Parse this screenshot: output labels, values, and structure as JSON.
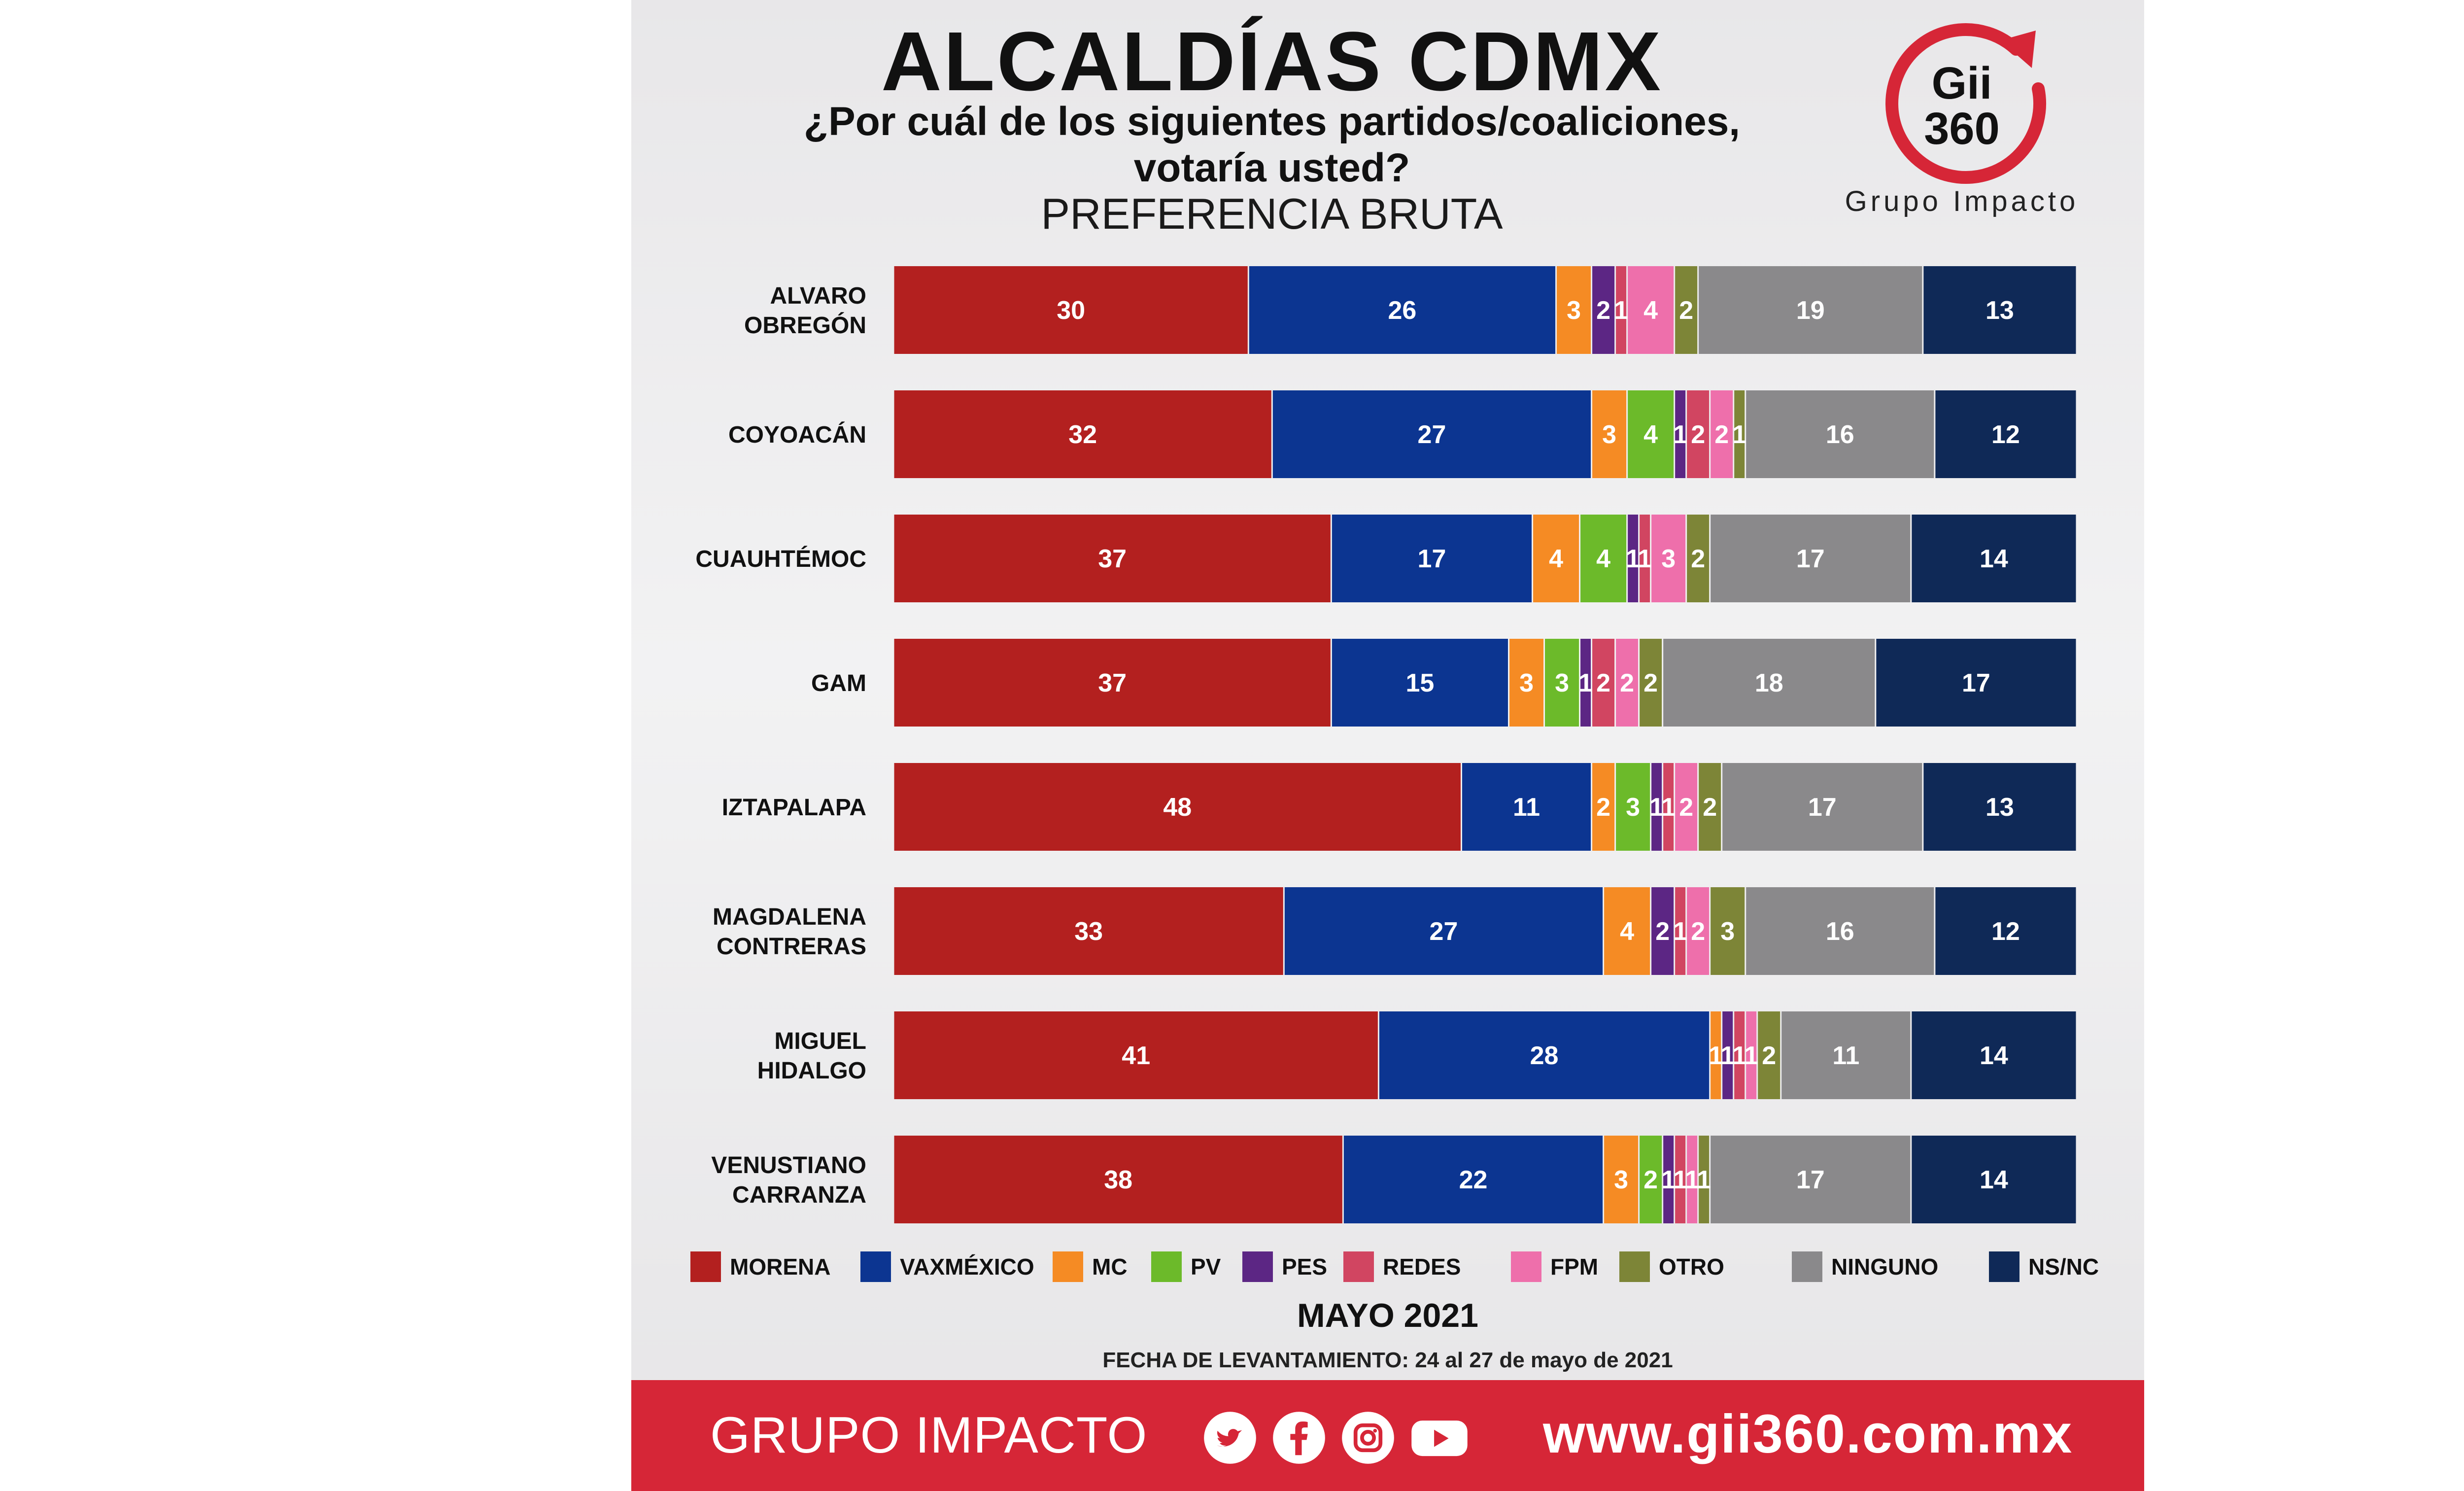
{
  "title": "ALCALDÍAS CDMX",
  "question_line1": "¿Por cuál de los siguientes partidos/coaliciones,",
  "question_line2": "votaría usted?",
  "subtitle": "PREFERENCIA BRUTA",
  "logo": {
    "text": "Gii 360",
    "line1": "Gii",
    "line2": "360",
    "tagline": "Grupo Impacto"
  },
  "period": "MAYO 2021",
  "fieldwork": "FECHA DE LEVANTAMIENTO: 24 al 27 de mayo de 2021",
  "footer": {
    "brand": "GRUPO IMPACTO",
    "url": "www.gii360.com.mx",
    "social_icons": [
      "twitter-icon",
      "facebook-icon",
      "instagram-icon",
      "youtube-icon"
    ]
  },
  "chart_data": {
    "type": "bar",
    "orientation": "horizontal",
    "stacked": true,
    "categories": [
      [
        "ALVARO",
        "OBREGÓN"
      ],
      [
        "COYOACÁN"
      ],
      [
        "CUAUHTÉMOC"
      ],
      [
        "GAM"
      ],
      [
        "IZTAPALAPA"
      ],
      [
        "MAGDALENA",
        "CONTRERAS"
      ],
      [
        "MIGUEL",
        "HIDALGO"
      ],
      [
        "VENUSTIANO",
        "CARRANZA"
      ]
    ],
    "series": [
      {
        "name": "MORENA",
        "color": "#b3201f",
        "values": [
          30,
          32,
          37,
          37,
          48,
          33,
          41,
          38
        ]
      },
      {
        "name": "VAXMÉXICO",
        "color": "#0c3591",
        "values": [
          26,
          27,
          17,
          15,
          11,
          27,
          28,
          22
        ]
      },
      {
        "name": "MC",
        "color": "#f58b24",
        "values": [
          3,
          3,
          4,
          3,
          2,
          4,
          1,
          3
        ]
      },
      {
        "name": "PV",
        "color": "#6cba2a",
        "values": [
          null,
          4,
          4,
          3,
          3,
          null,
          null,
          2
        ]
      },
      {
        "name": "PES",
        "color": "#5c2684",
        "values": [
          2,
          1,
          1,
          1,
          1,
          2,
          1,
          1
        ]
      },
      {
        "name": "REDES",
        "color": "#d14561",
        "values": [
          1,
          2,
          1,
          2,
          1,
          1,
          1,
          1
        ]
      },
      {
        "name": "FPM",
        "color": "#ee6fab",
        "values": [
          4,
          2,
          3,
          2,
          2,
          2,
          1,
          1
        ]
      },
      {
        "name": "OTRO",
        "color": "#7d8537",
        "values": [
          2,
          1,
          2,
          2,
          2,
          3,
          2,
          1
        ]
      },
      {
        "name": "NINGUNO",
        "color": "#8a898b",
        "values": [
          19,
          16,
          17,
          18,
          17,
          16,
          11,
          17
        ]
      },
      {
        "name": "NS/NC",
        "color": "#0f2957",
        "values": [
          13,
          12,
          14,
          17,
          13,
          12,
          14,
          14
        ]
      }
    ],
    "label_color": "#ffffff",
    "legend": "bottom",
    "grid": false
  }
}
